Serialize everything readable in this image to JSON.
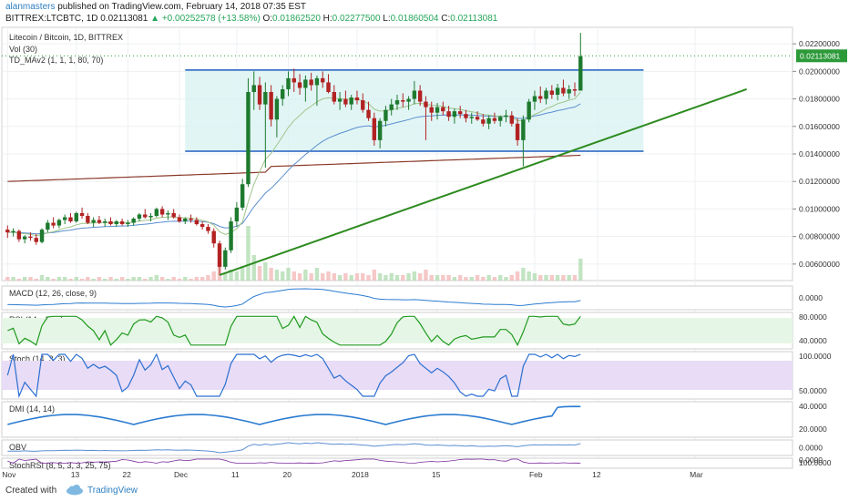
{
  "header": {
    "user": "alanmasters",
    "published": "published on TradingView.com, February 14, 2018 07:35 EST",
    "symbol": "BITTREX:LTCBTC, 1D",
    "last": "0.02113081",
    "change": "▲ +0.00252578 (+13.58%)",
    "o_label": "O:",
    "o": "0.01862520",
    "h_label": "H:",
    "h": "0.02277500",
    "l_label": "L:",
    "l": "0.01860504",
    "c_label": "C:",
    "c": "0.02113081"
  },
  "legend": {
    "title": "Litecoin / Bitcoin, 1D, BITTREX",
    "vol": "Vol (30)",
    "td": "TD_MAv2 (1, 1, 1, 80, 70)"
  },
  "footer": {
    "created": "Created with",
    "brand": "TradingView"
  },
  "colors": {
    "up": "#1e7a2e",
    "down": "#b22222",
    "channel": "#1f5fbf",
    "trend": "#2e8b20",
    "ma_slow": "#8b3a2a",
    "ma_mid": "#5b8fd0",
    "ma_fast": "#9fc58a",
    "last_price_bg": "#2d9a3a"
  },
  "chart_data": {
    "type": "candlestick",
    "main": {
      "price_axis": [
        "0.02200000",
        "0.02000000",
        "0.01800000",
        "0.01600000",
        "0.01400000",
        "0.01200000",
        "0.01000000",
        "0.00800000",
        "0.00600000"
      ],
      "price_ticks": [
        0.022,
        0.02,
        0.018,
        0.016,
        0.014,
        0.012,
        0.01,
        0.008,
        0.006
      ],
      "ylim": [
        0.0048,
        0.0232
      ],
      "last_price_label": "0.02113081",
      "last_price": 0.02113,
      "channel_top": 0.0201,
      "channel_bottom": 0.0142,
      "trendline": [
        {
          "date": "2017-12-08",
          "price": 0.0052
        },
        {
          "date": "2018-03-10",
          "price": 0.0187
        }
      ],
      "candles": [
        [
          0.0085,
          0.0088,
          0.0079,
          0.0083
        ],
        [
          0.0083,
          0.0086,
          0.008,
          0.0084
        ],
        [
          0.0084,
          0.0085,
          0.0076,
          0.0078
        ],
        [
          0.0078,
          0.0081,
          0.0075,
          0.008
        ],
        [
          0.008,
          0.0083,
          0.0077,
          0.0079
        ],
        [
          0.0079,
          0.0082,
          0.0074,
          0.0076
        ],
        [
          0.0076,
          0.0086,
          0.0075,
          0.0085
        ],
        [
          0.0085,
          0.0092,
          0.0083,
          0.009
        ],
        [
          0.009,
          0.0094,
          0.0086,
          0.0088
        ],
        [
          0.0088,
          0.0093,
          0.0086,
          0.0092
        ],
        [
          0.0092,
          0.0096,
          0.0089,
          0.0094
        ],
        [
          0.0094,
          0.0097,
          0.009,
          0.0091
        ],
        [
          0.0091,
          0.0098,
          0.009,
          0.0097
        ],
        [
          0.0097,
          0.0101,
          0.0093,
          0.0095
        ],
        [
          0.0095,
          0.0097,
          0.0089,
          0.009
        ],
        [
          0.009,
          0.0094,
          0.0087,
          0.0092
        ],
        [
          0.0092,
          0.0095,
          0.0089,
          0.009
        ],
        [
          0.009,
          0.0093,
          0.0087,
          0.0091
        ],
        [
          0.0091,
          0.0094,
          0.0088,
          0.0089
        ],
        [
          0.0089,
          0.0092,
          0.0087,
          0.0091
        ],
        [
          0.0091,
          0.0093,
          0.0088,
          0.0089
        ],
        [
          0.0089,
          0.0092,
          0.0087,
          0.009
        ],
        [
          0.009,
          0.0094,
          0.0088,
          0.0093
        ],
        [
          0.0093,
          0.0097,
          0.0091,
          0.0096
        ],
        [
          0.0096,
          0.01,
          0.0093,
          0.0094
        ],
        [
          0.0094,
          0.0097,
          0.0091,
          0.0095
        ],
        [
          0.0095,
          0.0101,
          0.0094,
          0.01
        ],
        [
          0.01,
          0.0102,
          0.0094,
          0.0096
        ],
        [
          0.0096,
          0.0099,
          0.0092,
          0.0097
        ],
        [
          0.0097,
          0.01,
          0.0093,
          0.0094
        ],
        [
          0.0094,
          0.0096,
          0.009,
          0.0091
        ],
        [
          0.0091,
          0.0094,
          0.0089,
          0.0093
        ],
        [
          0.0093,
          0.0096,
          0.009,
          0.0092
        ],
        [
          0.0092,
          0.0094,
          0.0088,
          0.0089
        ],
        [
          0.0089,
          0.0091,
          0.0085,
          0.0087
        ],
        [
          0.0087,
          0.0089,
          0.0082,
          0.0084
        ],
        [
          0.0084,
          0.0086,
          0.0072,
          0.0075
        ],
        [
          0.0075,
          0.0077,
          0.0052,
          0.0058
        ],
        [
          0.0058,
          0.0072,
          0.0056,
          0.007
        ],
        [
          0.007,
          0.0094,
          0.0068,
          0.0091
        ],
        [
          0.0091,
          0.0105,
          0.0087,
          0.0101
        ],
        [
          0.0101,
          0.0122,
          0.0099,
          0.0118
        ],
        [
          0.0118,
          0.0195,
          0.0116,
          0.0185
        ],
        [
          0.0185,
          0.02,
          0.0172,
          0.019
        ],
        [
          0.019,
          0.0196,
          0.0172,
          0.0176
        ],
        [
          0.0176,
          0.0192,
          0.013,
          0.0185
        ],
        [
          0.0185,
          0.019,
          0.016,
          0.0165
        ],
        [
          0.0165,
          0.0182,
          0.0152,
          0.018
        ],
        [
          0.018,
          0.019,
          0.0175,
          0.0187
        ],
        [
          0.0187,
          0.02,
          0.0182,
          0.0195
        ],
        [
          0.0195,
          0.0202,
          0.0185,
          0.0192
        ],
        [
          0.0192,
          0.0198,
          0.0183,
          0.0188
        ],
        [
          0.0188,
          0.0197,
          0.0178,
          0.0194
        ],
        [
          0.0194,
          0.0199,
          0.0186,
          0.019
        ],
        [
          0.019,
          0.0197,
          0.0175,
          0.0195
        ],
        [
          0.0195,
          0.02,
          0.0188,
          0.0192
        ],
        [
          0.0192,
          0.0198,
          0.0184,
          0.0185
        ],
        [
          0.0185,
          0.019,
          0.0176,
          0.0178
        ],
        [
          0.0178,
          0.0185,
          0.0172,
          0.018
        ],
        [
          0.018,
          0.0186,
          0.0174,
          0.0176
        ],
        [
          0.0176,
          0.0183,
          0.0172,
          0.0181
        ],
        [
          0.0181,
          0.0186,
          0.0176,
          0.0179
        ],
        [
          0.0179,
          0.0184,
          0.017,
          0.0172
        ],
        [
          0.0172,
          0.0178,
          0.0164,
          0.0166
        ],
        [
          0.0166,
          0.017,
          0.0146,
          0.015
        ],
        [
          0.015,
          0.0166,
          0.0144,
          0.0164
        ],
        [
          0.0164,
          0.0175,
          0.016,
          0.0172
        ],
        [
          0.0172,
          0.018,
          0.0168,
          0.0176
        ],
        [
          0.0176,
          0.0183,
          0.0172,
          0.0179
        ],
        [
          0.0179,
          0.0184,
          0.0174,
          0.0178
        ],
        [
          0.0178,
          0.0182,
          0.0172,
          0.018
        ],
        [
          0.018,
          0.0193,
          0.0176,
          0.0186
        ],
        [
          0.0186,
          0.019,
          0.0175,
          0.0178
        ],
        [
          0.0178,
          0.0182,
          0.015,
          0.0174
        ],
        [
          0.0174,
          0.0178,
          0.0164,
          0.017
        ],
        [
          0.017,
          0.0177,
          0.0165,
          0.0174
        ],
        [
          0.0174,
          0.0178,
          0.0168,
          0.0171
        ],
        [
          0.0171,
          0.0175,
          0.0164,
          0.0167
        ],
        [
          0.0167,
          0.0173,
          0.0162,
          0.0171
        ],
        [
          0.0171,
          0.0175,
          0.0166,
          0.0169
        ],
        [
          0.0169,
          0.0172,
          0.0163,
          0.0166
        ],
        [
          0.0166,
          0.017,
          0.0162,
          0.0167
        ],
        [
          0.0167,
          0.0171,
          0.0164,
          0.0165
        ],
        [
          0.0165,
          0.0169,
          0.016,
          0.0162
        ],
        [
          0.0162,
          0.0168,
          0.0158,
          0.0166
        ],
        [
          0.0166,
          0.017,
          0.0162,
          0.0164
        ],
        [
          0.0164,
          0.0168,
          0.016,
          0.0167
        ],
        [
          0.0167,
          0.0172,
          0.0163,
          0.0168
        ],
        [
          0.0168,
          0.0171,
          0.016,
          0.0162
        ],
        [
          0.0162,
          0.0166,
          0.0146,
          0.015
        ],
        [
          0.015,
          0.0168,
          0.0131,
          0.0165
        ],
        [
          0.0165,
          0.018,
          0.0163,
          0.0178
        ],
        [
          0.0178,
          0.0186,
          0.0172,
          0.0182
        ],
        [
          0.0182,
          0.0189,
          0.0177,
          0.018
        ],
        [
          0.018,
          0.0188,
          0.0176,
          0.0186
        ],
        [
          0.0186,
          0.019,
          0.018,
          0.0183
        ],
        [
          0.0183,
          0.0191,
          0.0179,
          0.0188
        ],
        [
          0.0188,
          0.0194,
          0.0182,
          0.0184
        ],
        [
          0.0184,
          0.019,
          0.018,
          0.0187
        ],
        [
          0.0187,
          0.0192,
          0.0182,
          0.0186
        ],
        [
          0.0186,
          0.0228,
          0.0186,
          0.0211
        ]
      ],
      "volume_rel": [
        2,
        2,
        1,
        2,
        2,
        1,
        3,
        2,
        1,
        2,
        2,
        1,
        2,
        1,
        2,
        1,
        2,
        1,
        2,
        1,
        2,
        1,
        2,
        2,
        1,
        2,
        3,
        2,
        1,
        2,
        1,
        2,
        1,
        2,
        2,
        3,
        5,
        9,
        4,
        6,
        5,
        8,
        30,
        14,
        8,
        10,
        7,
        6,
        5,
        7,
        5,
        4,
        6,
        4,
        7,
        4,
        5,
        4,
        3,
        4,
        3,
        4,
        4,
        3,
        6,
        4,
        3,
        4,
        3,
        3,
        4,
        5,
        4,
        6,
        3,
        3,
        3,
        3,
        2,
        3,
        2,
        2,
        3,
        2,
        3,
        2,
        3,
        2,
        3,
        5,
        7,
        5,
        4,
        3,
        3,
        3,
        3,
        3,
        3,
        3,
        12
      ]
    },
    "x_axis": {
      "labels": [
        "Nov",
        "13",
        "22",
        "Dec",
        "11",
        "20",
        "2018",
        "15",
        "Feb",
        "12",
        "Mar"
      ],
      "dates": [
        "2017-11-01",
        "2017-11-13",
        "2017-11-22",
        "2017-12-01",
        "2017-12-11",
        "2017-12-20",
        "2018-01-01",
        "2018-01-15",
        "2018-02-01",
        "2018-02-12",
        "2018-03-01"
      ],
      "xlim": [
        "2017-10-31",
        "2018-03-18"
      ]
    },
    "panes": [
      {
        "id": "macd",
        "label": "MACD (12, 26, close, 9)",
        "axis": [
          "0.0000"
        ]
      },
      {
        "id": "rsi",
        "label": "RSI (14, close)",
        "axis": [
          "80.0000",
          "40.0000"
        ]
      },
      {
        "id": "stoch",
        "label": "Stoch (14, 3, 3)",
        "axis": [
          "100.0000",
          "50.0000"
        ]
      },
      {
        "id": "dmi",
        "label": "DMI (14, 14)",
        "axis": [
          "40.0000",
          "20.0000"
        ]
      },
      {
        "id": "obv",
        "label": "OBV",
        "axis": [
          "0.0000"
        ]
      },
      {
        "id": "stochrsi",
        "label": "StochRSI (8, 5, 3, 3, 25, 75)",
        "axis": [
          "100.0000",
          "0.0000"
        ]
      }
    ]
  }
}
